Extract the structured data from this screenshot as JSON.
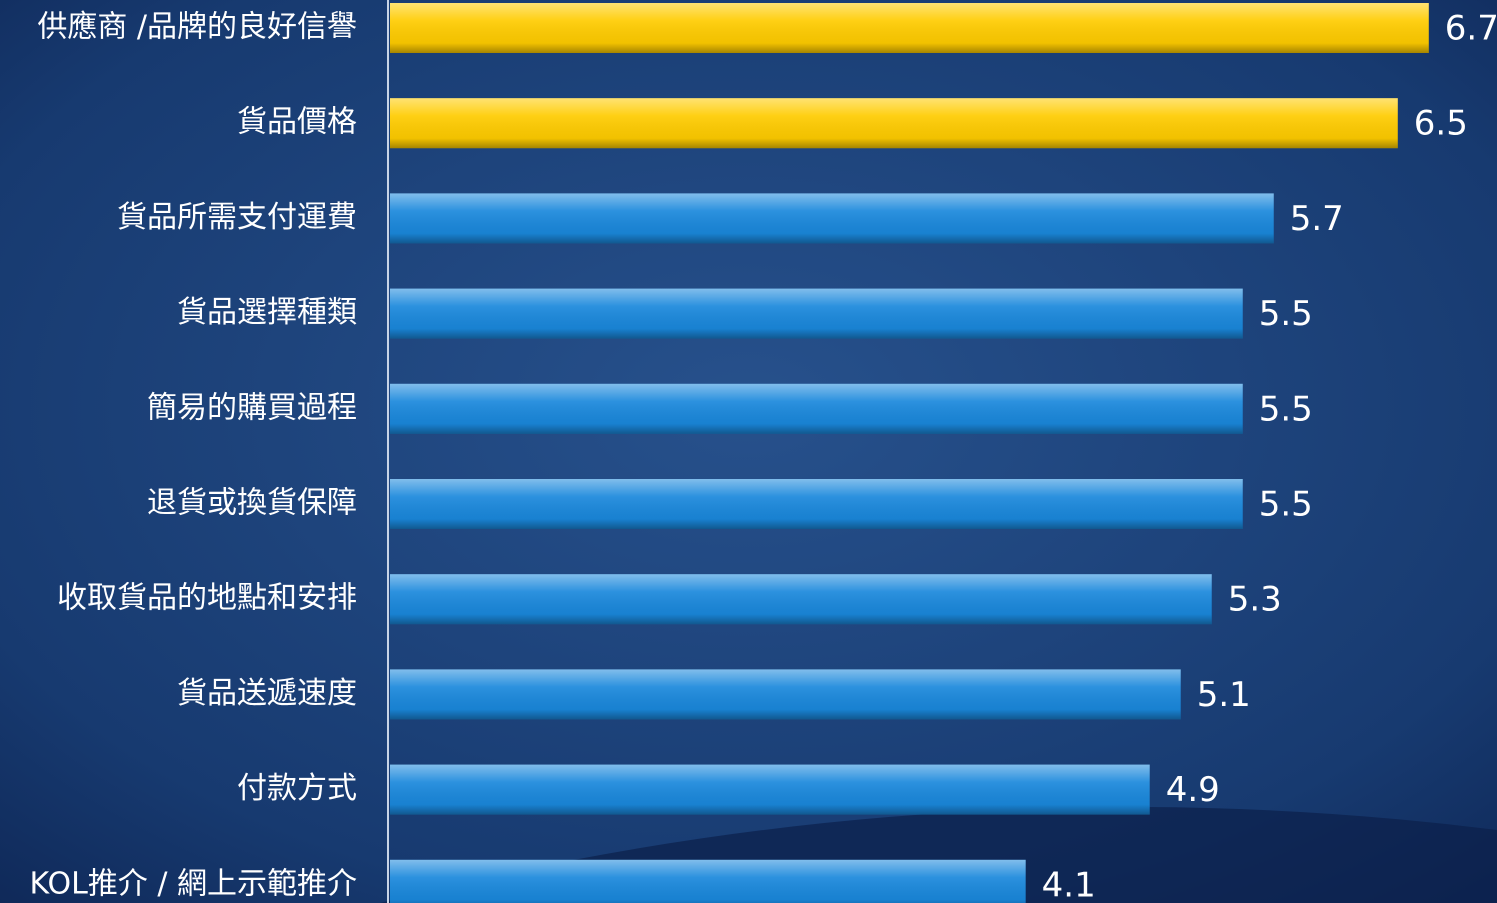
{
  "chart_data": {
    "type": "bar",
    "orientation": "horizontal",
    "categories": [
      "供應商 /品牌的良好信譽",
      "貨品價格",
      "貨品所需支付運費",
      "貨品選擇種類",
      "簡易的購買過程",
      "退貨或換貨保障",
      "收取貨品的地點和安排",
      "貨品送遞速度",
      "付款方式",
      "KOL推介 / 網上示範推介"
    ],
    "values": [
      6.7,
      6.5,
      5.7,
      5.5,
      5.5,
      5.5,
      5.3,
      5.1,
      4.9,
      4.1
    ],
    "colors": [
      "#ffcc00",
      "#ffcc00",
      "#1a88dc",
      "#1a88dc",
      "#1a88dc",
      "#1a88dc",
      "#1a88dc",
      "#1a88dc",
      "#1a88dc",
      "#1a88dc"
    ],
    "xlim": [
      0,
      7.14
    ]
  }
}
